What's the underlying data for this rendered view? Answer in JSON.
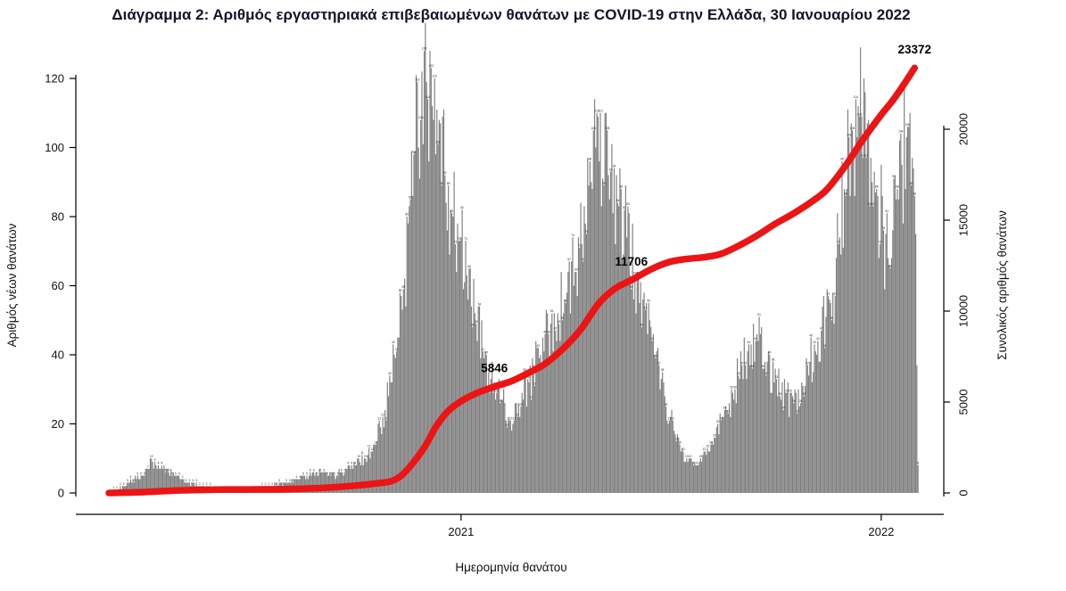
{
  "title": "Διάγραμμα 2: Αριθμός εργαστηριακά επιβεβαιωμένων θανάτων με COVID-19 στην Ελλάδα, 30 Ιανουαρίου 2022",
  "chart_data": {
    "type": "bar+line",
    "x_axis": {
      "label": "Ημερομηνία θανάτου",
      "start_date": "2020-03-01",
      "end_date": "2022-02-02",
      "ticks": [
        {
          "label": "2021",
          "date": "2021-01-01"
        },
        {
          "label": "2022",
          "date": "2022-01-01"
        }
      ]
    },
    "left_axis": {
      "label": "Αριθμός νέων θανάτων",
      "ticks": [
        0,
        20,
        40,
        60,
        80,
        100,
        120
      ],
      "range": [
        0,
        127
      ]
    },
    "right_axis": {
      "label": "Συνολικός αριθμός θανάτων",
      "ticks": [
        0,
        5000,
        10000,
        15000,
        20000
      ],
      "range": [
        0,
        24000
      ]
    },
    "bars": {
      "name": "Αριθμός νέων θανάτων (ημερήσιοι θάνατοι)",
      "color": "#7f7f7f",
      "keypoints": [
        [
          "2020-03-01",
          0
        ],
        [
          "2020-03-08",
          1
        ],
        [
          "2020-03-15",
          2
        ],
        [
          "2020-03-22",
          4
        ],
        [
          "2020-04-01",
          5
        ],
        [
          "2020-04-06",
          10
        ],
        [
          "2020-04-12",
          7
        ],
        [
          "2020-04-20",
          7
        ],
        [
          "2020-04-28",
          5
        ],
        [
          "2020-05-08",
          3
        ],
        [
          "2020-05-20",
          2
        ],
        [
          "2020-06-05",
          1
        ],
        [
          "2020-06-20",
          1
        ],
        [
          "2020-07-05",
          1
        ],
        [
          "2020-07-20",
          2
        ],
        [
          "2020-08-01",
          3
        ],
        [
          "2020-08-12",
          4
        ],
        [
          "2020-08-22",
          5
        ],
        [
          "2020-09-01",
          6
        ],
        [
          "2020-09-10",
          5
        ],
        [
          "2020-09-20",
          6
        ],
        [
          "2020-10-01",
          8
        ],
        [
          "2020-10-10",
          10
        ],
        [
          "2020-10-18",
          14
        ],
        [
          "2020-10-25",
          22
        ],
        [
          "2020-11-01",
          32
        ],
        [
          "2020-11-07",
          45
        ],
        [
          "2020-11-13",
          62
        ],
        [
          "2020-11-18",
          85
        ],
        [
          "2020-11-23",
          121
        ],
        [
          "2020-11-27",
          108
        ],
        [
          "2020-12-02",
          119
        ],
        [
          "2020-12-07",
          112
        ],
        [
          "2020-12-12",
          101
        ],
        [
          "2020-12-18",
          92
        ],
        [
          "2020-12-24",
          81
        ],
        [
          "2020-12-30",
          73
        ],
        [
          "2021-01-06",
          63
        ],
        [
          "2021-01-13",
          52
        ],
        [
          "2021-01-20",
          41
        ],
        [
          "2021-01-27",
          33
        ],
        [
          "2021-02-05",
          27
        ],
        [
          "2021-02-13",
          21
        ],
        [
          "2021-02-20",
          26
        ],
        [
          "2021-03-01",
          32
        ],
        [
          "2021-03-10",
          39
        ],
        [
          "2021-03-18",
          46
        ],
        [
          "2021-03-26",
          52
        ],
        [
          "2021-04-03",
          58
        ],
        [
          "2021-04-10",
          64
        ],
        [
          "2021-04-16",
          72
        ],
        [
          "2021-04-22",
          89
        ],
        [
          "2021-04-28",
          100
        ],
        [
          "2021-05-04",
          91
        ],
        [
          "2021-05-11",
          93
        ],
        [
          "2021-05-18",
          83
        ],
        [
          "2021-05-25",
          74
        ],
        [
          "2021-06-01",
          63
        ],
        [
          "2021-06-08",
          56
        ],
        [
          "2021-06-16",
          44
        ],
        [
          "2021-06-24",
          33
        ],
        [
          "2021-07-02",
          22
        ],
        [
          "2021-07-10",
          14
        ],
        [
          "2021-07-17",
          9
        ],
        [
          "2021-07-24",
          8
        ],
        [
          "2021-08-01",
          12
        ],
        [
          "2021-08-09",
          16
        ],
        [
          "2021-08-17",
          22
        ],
        [
          "2021-08-25",
          29
        ],
        [
          "2021-09-02",
          37
        ],
        [
          "2021-09-10",
          43
        ],
        [
          "2021-09-16",
          44
        ],
        [
          "2021-09-24",
          38
        ],
        [
          "2021-10-02",
          33
        ],
        [
          "2021-10-10",
          29
        ],
        [
          "2021-10-17",
          26
        ],
        [
          "2021-10-24",
          32
        ],
        [
          "2021-10-31",
          38
        ],
        [
          "2021-11-07",
          44
        ],
        [
          "2021-11-14",
          51
        ],
        [
          "2021-11-20",
          58
        ],
        [
          "2021-11-25",
          72
        ],
        [
          "2021-11-30",
          88
        ],
        [
          "2021-12-04",
          103
        ],
        [
          "2021-12-08",
          99
        ],
        [
          "2021-12-12",
          112
        ],
        [
          "2021-12-15",
          109
        ],
        [
          "2021-12-19",
          97
        ],
        [
          "2021-12-24",
          90
        ],
        [
          "2021-12-29",
          86
        ],
        [
          "2022-01-03",
          76
        ],
        [
          "2022-01-07",
          68
        ],
        [
          "2022-01-11",
          76
        ],
        [
          "2022-01-15",
          88
        ],
        [
          "2022-01-19",
          95
        ],
        [
          "2022-01-23",
          103
        ],
        [
          "2022-01-26",
          110
        ],
        [
          "2022-01-28",
          97
        ],
        [
          "2022-01-30",
          86
        ],
        [
          "2022-01-31",
          75
        ],
        [
          "2022-02-01",
          37
        ],
        [
          "2022-02-02",
          8
        ]
      ]
    },
    "line": {
      "name": "Συνολικός αριθμός θανάτων (αθροιστικά)",
      "color": "#ec1414",
      "keypoints": [
        [
          "2020-03-01",
          0
        ],
        [
          "2020-04-01",
          50
        ],
        [
          "2020-05-01",
          140
        ],
        [
          "2020-06-01",
          180
        ],
        [
          "2020-07-01",
          193
        ],
        [
          "2020-08-01",
          210
        ],
        [
          "2020-09-01",
          271
        ],
        [
          "2020-10-01",
          400
        ],
        [
          "2020-10-20",
          530
        ],
        [
          "2020-11-01",
          642
        ],
        [
          "2020-11-10",
          950
        ],
        [
          "2020-11-20",
          1630
        ],
        [
          "2020-12-01",
          2600
        ],
        [
          "2020-12-10",
          3625
        ],
        [
          "2020-12-20",
          4457
        ],
        [
          "2021-01-01",
          5050
        ],
        [
          "2021-01-15",
          5500
        ],
        [
          "2021-01-30",
          5846
        ],
        [
          "2021-02-15",
          6180
        ],
        [
          "2021-03-01",
          6620
        ],
        [
          "2021-03-15",
          7100
        ],
        [
          "2021-04-01",
          8020
        ],
        [
          "2021-04-15",
          9000
        ],
        [
          "2021-05-01",
          10450
        ],
        [
          "2021-05-15",
          11250
        ],
        [
          "2021-05-29",
          11706
        ],
        [
          "2021-06-15",
          12300
        ],
        [
          "2021-07-01",
          12700
        ],
        [
          "2021-07-15",
          12860
        ],
        [
          "2021-08-01",
          12970
        ],
        [
          "2021-08-15",
          13150
        ],
        [
          "2021-09-01",
          13650
        ],
        [
          "2021-09-15",
          14150
        ],
        [
          "2021-10-01",
          14800
        ],
        [
          "2021-10-15",
          15300
        ],
        [
          "2021-11-01",
          15990
        ],
        [
          "2021-11-15",
          16700
        ],
        [
          "2021-12-01",
          18000
        ],
        [
          "2021-12-15",
          19330
        ],
        [
          "2022-01-01",
          20800
        ],
        [
          "2022-01-10",
          21500
        ],
        [
          "2022-01-20",
          22400
        ],
        [
          "2022-01-30",
          23372
        ]
      ]
    },
    "annotations": [
      {
        "text": "5846",
        "date": "2021-01-30",
        "value": 5846
      },
      {
        "text": "11706",
        "date": "2021-05-29",
        "value": 11706
      },
      {
        "text": "23372",
        "date": "2022-01-30",
        "value": 23372
      }
    ]
  }
}
